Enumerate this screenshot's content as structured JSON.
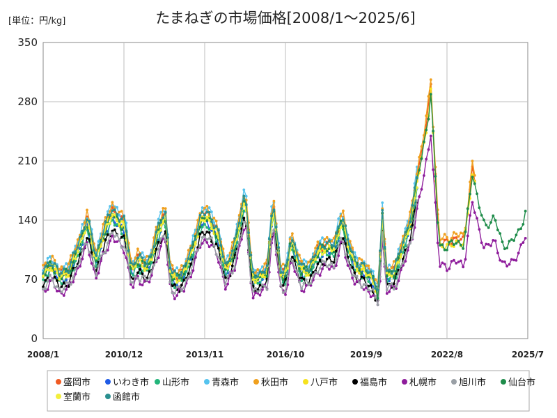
{
  "unit_label": "[単位：円/kg]",
  "chart_data": {
    "type": "line",
    "title": "たまねぎの市場価格[2008/1～2025/6]",
    "xlabel": "",
    "ylabel": "",
    "ylim": [
      0,
      350
    ],
    "yticks": [
      "0",
      "70",
      "140",
      "210",
      "280",
      "350"
    ],
    "xticks": [
      "2008/1",
      "2010/12",
      "2013/11",
      "2016/10",
      "2019/9",
      "2022/8",
      "2025/7"
    ],
    "grid": true,
    "legend_position": "bottom",
    "series": [
      {
        "name": "盛岡市",
        "color": "#f05a22",
        "offset": 2,
        "scale": 1.02,
        "phase": 0,
        "end": 2023.6
      },
      {
        "name": "いわき市",
        "color": "#1f5be6",
        "offset": -2,
        "scale": 0.98,
        "phase": 1.1,
        "end": 2021.5
      },
      {
        "name": "山形市",
        "color": "#22b57a",
        "offset": -4,
        "scale": 0.97,
        "phase": 2.3,
        "end": 2021.5
      },
      {
        "name": "青森市",
        "color": "#55c3ee",
        "offset": 3,
        "scale": 1.06,
        "phase": 3.7,
        "end": 2021.5
      },
      {
        "name": "秋田市",
        "color": "#f0a01e",
        "offset": 5,
        "scale": 1.04,
        "phase": 0.6,
        "end": 2023.6
      },
      {
        "name": "八戸市",
        "color": "#f6e21e",
        "offset": 0,
        "scale": 1.0,
        "phase": 4.4,
        "end": 2023.6
      },
      {
        "name": "福島市",
        "color": "#000000",
        "offset": -6,
        "scale": 0.92,
        "phase": 5.1,
        "end": 2021.5
      },
      {
        "name": "札幌市",
        "color": "#8e1c9b",
        "offset": -10,
        "scale": 0.88,
        "phase": 1.8,
        "end": 2025.45
      },
      {
        "name": "旭川市",
        "color": "#9aa0a6",
        "offset": -8,
        "scale": 0.9,
        "phase": 2.9,
        "end": 2021.5
      },
      {
        "name": "仙台市",
        "color": "#1e8c4a",
        "offset": 0,
        "scale": 1.0,
        "phase": 3.2,
        "end": 2025.45
      },
      {
        "name": "室蘭市",
        "color": "#f3ef3c",
        "offset": 1,
        "scale": 0.99,
        "phase": 5.8,
        "end": 2021.5
      },
      {
        "name": "函館市",
        "color": "#2a8f8f",
        "offset": 2,
        "scale": 1.03,
        "phase": 4.9,
        "end": 2021.5
      }
    ],
    "base_profile": {
      "x": [
        2008.0,
        2008.3,
        2008.6,
        2008.9,
        2009.2,
        2009.6,
        2009.9,
        2010.2,
        2010.5,
        2010.8,
        2010.95,
        2011.2,
        2011.4,
        2011.7,
        2011.9,
        2012.1,
        2012.4,
        2012.6,
        2012.8,
        2013.1,
        2013.4,
        2013.7,
        2013.95,
        2014.3,
        2014.6,
        2014.9,
        2015.3,
        2015.55,
        2015.8,
        2016.1,
        2016.3,
        2016.6,
        2016.8,
        2016.95,
        2017.3,
        2017.6,
        2017.9,
        2018.2,
        2018.5,
        2018.8,
        2019.0,
        2019.3,
        2019.6,
        2019.9,
        2020.1,
        2020.25,
        2020.4,
        2020.7,
        2021.0,
        2021.3,
        2021.5,
        2021.7,
        2021.9,
        2022.0,
        2022.3,
        2022.6,
        2022.9,
        2023.2,
        2023.5,
        2023.7,
        2023.95,
        2024.3,
        2024.6,
        2024.9,
        2025.2,
        2025.45
      ],
      "y": [
        75,
        88,
        72,
        78,
        100,
        138,
        92,
        125,
        148,
        135,
        132,
        78,
        92,
        85,
        92,
        120,
        148,
        75,
        70,
        78,
        105,
        140,
        143,
        122,
        80,
        105,
        168,
        70,
        72,
        80,
        160,
        72,
        78,
        118,
        80,
        80,
        100,
        108,
        105,
        142,
        110,
        85,
        80,
        70,
        52,
        145,
        75,
        78,
        110,
        140,
        185,
        220,
        260,
        290,
        110,
        108,
        115,
        110,
        195,
        165,
        130,
        145,
        108,
        115,
        125,
        155
      ]
    }
  }
}
